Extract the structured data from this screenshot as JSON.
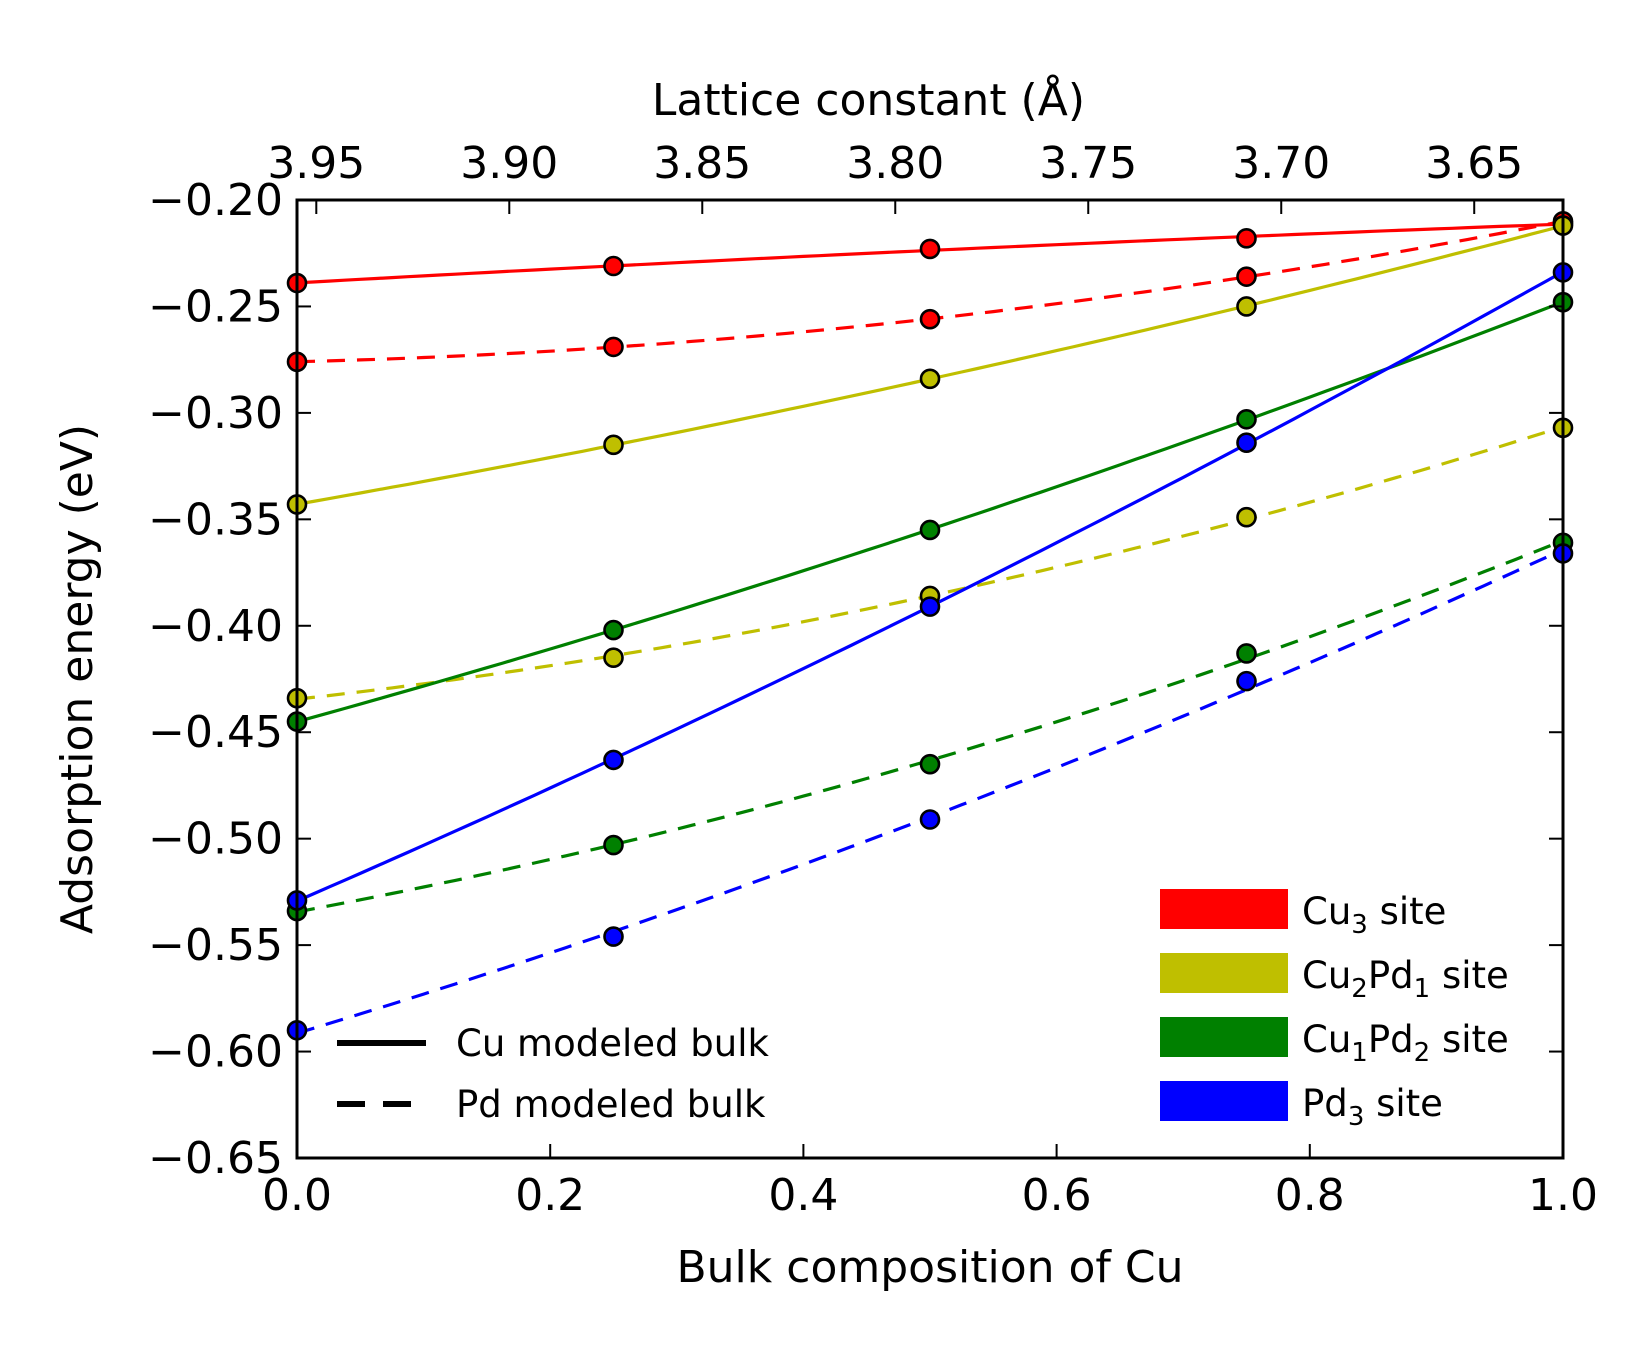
{
  "chart_data": {
    "type": "line",
    "xlabel": "Bulk composition of Cu",
    "ylabel": "Adsorption energy (eV)",
    "top_xlabel": "Lattice constant (Å)",
    "xlim": [
      0.0,
      1.0
    ],
    "ylim": [
      -0.65,
      -0.2
    ],
    "top_xlim": [
      3.955,
      3.627
    ],
    "x_ticks": [
      "0.0",
      "0.2",
      "0.4",
      "0.6",
      "0.8",
      "1.0"
    ],
    "y_ticks": [
      "−0.20",
      "−0.25",
      "−0.30",
      "−0.35",
      "−0.40",
      "−0.45",
      "−0.50",
      "−0.55",
      "−0.60",
      "−0.65"
    ],
    "top_ticks": [
      "3.95",
      "3.90",
      "3.85",
      "3.80",
      "3.75",
      "3.70",
      "3.65"
    ],
    "grid": false,
    "legend_site_placement": "lower-right",
    "legend_style_placement": "lower-left",
    "x": [
      0.0,
      0.25,
      0.5,
      0.75,
      1.0
    ],
    "series": [
      {
        "site": "Cu3",
        "model": "Cu",
        "style": "solid",
        "color": "#ff0000",
        "values": [
          -0.239,
          -0.231,
          -0.223,
          -0.218,
          -0.211
        ]
      },
      {
        "site": "Cu3",
        "model": "Pd",
        "style": "dashed",
        "color": "#ff0000",
        "values": [
          -0.276,
          -0.269,
          -0.256,
          -0.236,
          -0.21
        ]
      },
      {
        "site": "Cu2Pd1",
        "model": "Cu",
        "style": "solid",
        "color": "#bfbf00",
        "values": [
          -0.343,
          -0.315,
          -0.284,
          -0.25,
          -0.212
        ]
      },
      {
        "site": "Cu2Pd1",
        "model": "Pd",
        "style": "dashed",
        "color": "#bfbf00",
        "values": [
          -0.434,
          -0.415,
          -0.386,
          -0.349,
          -0.307
        ]
      },
      {
        "site": "Cu1Pd2",
        "model": "Cu",
        "style": "solid",
        "color": "#008000",
        "values": [
          -0.445,
          -0.402,
          -0.355,
          -0.303,
          -0.248
        ]
      },
      {
        "site": "Cu1Pd2",
        "model": "Pd",
        "style": "dashed",
        "color": "#008000",
        "values": [
          -0.534,
          -0.503,
          -0.465,
          -0.413,
          -0.361
        ]
      },
      {
        "site": "Pd3",
        "model": "Cu",
        "style": "solid",
        "color": "#0000ff",
        "values": [
          -0.529,
          -0.463,
          -0.391,
          -0.314,
          -0.234
        ]
      },
      {
        "site": "Pd3",
        "model": "Pd",
        "style": "dashed",
        "color": "#0000ff",
        "values": [
          -0.59,
          -0.546,
          -0.491,
          -0.426,
          -0.366
        ]
      }
    ],
    "legend_sites": [
      {
        "color": "#ff0000",
        "base1": "Cu",
        "sub1": "3",
        "base2": "",
        "sub2": "",
        "suffix": " site"
      },
      {
        "color": "#bfbf00",
        "base1": "Cu",
        "sub1": "2",
        "base2": "Pd",
        "sub2": "1",
        "suffix": " site"
      },
      {
        "color": "#008000",
        "base1": "Cu",
        "sub1": "1",
        "base2": "Pd",
        "sub2": "2",
        "suffix": " site"
      },
      {
        "color": "#0000ff",
        "base1": "Pd",
        "sub1": "3",
        "base2": "",
        "sub2": "",
        "suffix": " site"
      }
    ],
    "legend_styles": [
      {
        "label": "Cu modeled bulk",
        "style": "solid"
      },
      {
        "label": "Pd modeled bulk",
        "style": "dashed"
      }
    ]
  }
}
